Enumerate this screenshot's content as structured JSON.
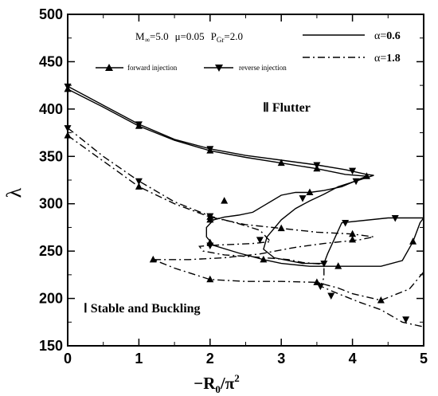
{
  "chart_data": {
    "type": "line",
    "xlabel": "−R",
    "xlabel_sub": "0",
    "xlabel_tail": "/π",
    "xlabel_sup": "2",
    "ylabel": "λ",
    "xlim": [
      0,
      5
    ],
    "ylim": [
      150,
      500
    ],
    "x_ticks": [
      0,
      1,
      2,
      3,
      4,
      5
    ],
    "x_tick_labels": [
      "0",
      "1",
      "2",
      "3",
      "4",
      "5"
    ],
    "y_ticks": [
      150,
      200,
      250,
      300,
      350,
      400,
      450,
      500
    ],
    "y_tick_labels": [
      "150",
      "200",
      "250",
      "300",
      "350",
      "400",
      "450",
      "500"
    ],
    "params": {
      "mach": "M",
      "mach_sub": "∞",
      "mach_val": "=5.0",
      "mu": "μ=0.05",
      "pgr": "P",
      "pgr_sub": "Gr",
      "pgr_val": "=2.0"
    },
    "annotations": {
      "region_flutter": "Ⅱ   Flutter",
      "region_stable": "Ⅰ    Stable and Buckling"
    },
    "legend_lines": [
      {
        "label_prefix": "α=",
        "label_value": "0.6",
        "dash": "solid"
      },
      {
        "label_prefix": "α=",
        "label_value": "1.8",
        "dash": "dashdot"
      }
    ],
    "legend_markers": [
      {
        "label": "forward injection",
        "marker": "triangle-up"
      },
      {
        "label": "reverse injection",
        "marker": "triangle-down"
      }
    ],
    "series": [
      {
        "alpha": 0.6,
        "injection": "forward",
        "dash": "solid",
        "marker": "triangle-up",
        "points": [
          [
            0,
            421
          ],
          [
            0.5,
            402
          ],
          [
            1,
            382
          ],
          [
            1.5,
            367
          ],
          [
            2,
            356
          ],
          [
            2.5,
            349
          ],
          [
            3,
            343
          ],
          [
            3.5,
            337
          ],
          [
            3.9,
            331
          ],
          [
            4.2,
            329
          ],
          [
            4.1,
            326
          ],
          [
            3.85,
            318
          ],
          [
            3.6,
            314
          ],
          [
            3.4,
            312
          ],
          [
            3.2,
            312
          ],
          [
            3.0,
            309
          ],
          [
            2.8,
            300
          ],
          [
            2.6,
            291
          ],
          [
            2.4,
            288
          ],
          [
            2.2,
            286
          ],
          [
            2.05,
            283
          ],
          [
            1.95,
            275
          ],
          [
            1.95,
            265
          ],
          [
            2.05,
            256
          ],
          [
            2.4,
            248
          ],
          [
            2.75,
            241
          ],
          [
            3.0,
            237
          ],
          [
            3.4,
            234
          ],
          [
            3.8,
            234
          ],
          [
            4.4,
            234
          ],
          [
            4.7,
            240
          ],
          [
            4.85,
            260
          ],
          [
            4.95,
            280
          ],
          [
            5.0,
            285
          ]
        ],
        "markers": [
          [
            0,
            421
          ],
          [
            1,
            382
          ],
          [
            2,
            356
          ],
          [
            3.0,
            343
          ],
          [
            3.5,
            337
          ],
          [
            4.2,
            329
          ],
          [
            3.4,
            312
          ],
          [
            2.2,
            303
          ],
          [
            2.0,
            283
          ],
          [
            2.0,
            259
          ],
          [
            2.75,
            241
          ],
          [
            3.8,
            234
          ],
          [
            4.85,
            260
          ]
        ]
      },
      {
        "alpha": 0.6,
        "injection": "reverse",
        "dash": "solid",
        "marker": "triangle-down",
        "points": [
          [
            0,
            424
          ],
          [
            0.5,
            404
          ],
          [
            1,
            384
          ],
          [
            1.5,
            368
          ],
          [
            2,
            358
          ],
          [
            2.5,
            351
          ],
          [
            3,
            346
          ],
          [
            3.5,
            341
          ],
          [
            3.9,
            336
          ],
          [
            4.2,
            331
          ],
          [
            4.3,
            330
          ],
          [
            4.05,
            324
          ],
          [
            3.8,
            318
          ],
          [
            3.6,
            310
          ],
          [
            3.4,
            303
          ],
          [
            3.2,
            295
          ],
          [
            3.0,
            283
          ],
          [
            2.8,
            265
          ],
          [
            2.75,
            252
          ],
          [
            2.9,
            243
          ],
          [
            3.3,
            237
          ],
          [
            3.6,
            237
          ],
          [
            3.65,
            247
          ],
          [
            3.85,
            280
          ],
          [
            4.5,
            285
          ],
          [
            5.0,
            285
          ]
        ],
        "markers": [
          [
            0,
            424
          ],
          [
            1,
            384
          ],
          [
            2,
            358
          ],
          [
            3.5,
            341
          ],
          [
            4.0,
            335
          ],
          [
            4.05,
            324
          ],
          [
            3.3,
            306
          ],
          [
            2.7,
            262
          ],
          [
            3.6,
            237
          ],
          [
            3.9,
            280
          ],
          [
            4.6,
            285
          ]
        ]
      },
      {
        "alpha": 1.8,
        "injection": "forward",
        "dash": "dashdot",
        "marker": "triangle-up",
        "points": [
          [
            0,
            372
          ],
          [
            0.5,
            345
          ],
          [
            1,
            318
          ],
          [
            1.5,
            300
          ],
          [
            2,
            286
          ],
          [
            2.5,
            278
          ],
          [
            3,
            274
          ],
          [
            3.5,
            270
          ],
          [
            4,
            268
          ],
          [
            4.3,
            265
          ],
          [
            4.1,
            262
          ],
          [
            3.6,
            258
          ],
          [
            3.2,
            254
          ],
          [
            2.7,
            247
          ],
          [
            2.2,
            243
          ],
          [
            1.7,
            241
          ],
          [
            1.2,
            241
          ],
          [
            1.5,
            232
          ],
          [
            2,
            220
          ],
          [
            2.5,
            218
          ],
          [
            3.0,
            218
          ],
          [
            3.5,
            217
          ],
          [
            3.8,
            211
          ],
          [
            4.0,
            205
          ],
          [
            4.4,
            198
          ],
          [
            4.8,
            210
          ],
          [
            5.0,
            228
          ]
        ],
        "markers": [
          [
            0,
            372
          ],
          [
            1,
            318
          ],
          [
            2,
            286
          ],
          [
            3,
            274
          ],
          [
            4,
            268
          ],
          [
            4.0,
            262
          ],
          [
            1.2,
            241
          ],
          [
            2,
            220
          ],
          [
            3.5,
            217
          ],
          [
            4.4,
            198
          ]
        ]
      },
      {
        "alpha": 1.8,
        "injection": "reverse",
        "dash": "dashdot",
        "marker": "triangle-down",
        "points": [
          [
            0,
            380
          ],
          [
            0.5,
            350
          ],
          [
            1,
            324
          ],
          [
            1.5,
            302
          ],
          [
            2,
            287
          ],
          [
            2.4,
            279
          ],
          [
            2.7,
            272
          ],
          [
            2.85,
            260
          ],
          [
            2.6,
            258
          ],
          [
            2.3,
            257
          ],
          [
            2.0,
            256
          ],
          [
            1.85,
            255
          ],
          [
            1.9,
            250
          ],
          [
            2.2,
            246
          ],
          [
            2.6,
            244
          ],
          [
            3.1,
            241
          ],
          [
            3.3,
            238
          ],
          [
            3.6,
            236
          ],
          [
            3.6,
            222
          ],
          [
            3.55,
            213
          ],
          [
            3.8,
            205
          ],
          [
            4.1,
            196
          ],
          [
            4.4,
            188
          ],
          [
            4.7,
            175
          ],
          [
            5.0,
            170
          ]
        ],
        "markers": [
          [
            0,
            380
          ],
          [
            1,
            324
          ],
          [
            2,
            287
          ],
          [
            2.0,
            256
          ],
          [
            3.55,
            213
          ],
          [
            3.7,
            203
          ],
          [
            4.75,
            178
          ]
        ]
      }
    ]
  }
}
